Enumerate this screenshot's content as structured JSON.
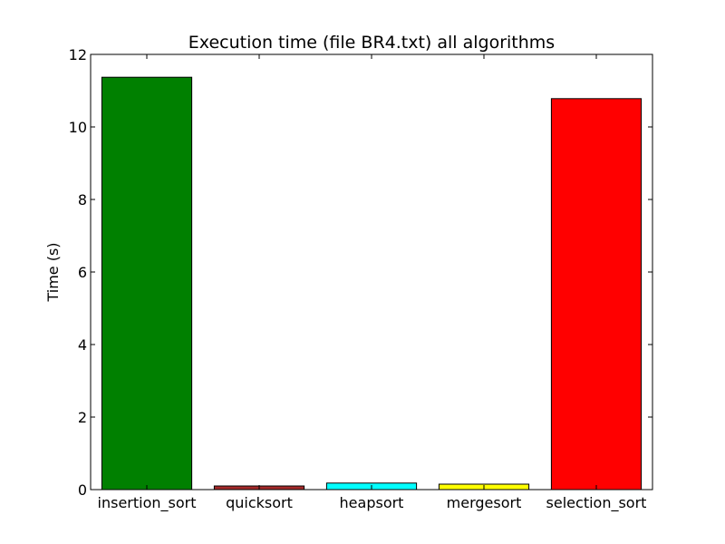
{
  "chart_data": {
    "type": "bar",
    "title": "Execution time (file BR4.txt) all algorithms",
    "xlabel": "",
    "ylabel": "Time (s)",
    "categories": [
      "insertion_sort",
      "quicksort",
      "heapsort",
      "mergesort",
      "selection_sort"
    ],
    "values": [
      11.37,
      0.1,
      0.18,
      0.15,
      10.78
    ],
    "colors": [
      "#008000",
      "#a52a2a",
      "#00ffff",
      "#ffff00",
      "#ff0000"
    ],
    "ylim": [
      0,
      12
    ],
    "yticks": [
      "0",
      "2",
      "4",
      "6",
      "8",
      "10",
      "12"
    ],
    "grid": false
  }
}
